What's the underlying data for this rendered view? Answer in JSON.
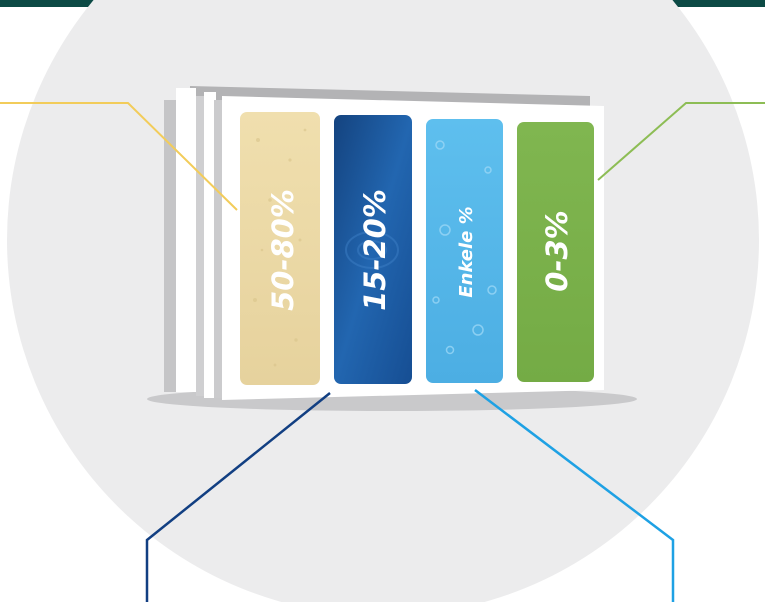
{
  "colors": {
    "top_bar": "#0c4a45",
    "circle": "#ececed",
    "sand": "#ead9a8",
    "water_dark": "#1b5aa3",
    "water_light": "#58b9ea",
    "green": "#7cb24b",
    "line_yellow": "#f2cc5a",
    "line_green": "#8dbd55",
    "line_navy": "#123f82",
    "line_blue": "#1ea1e4"
  },
  "components": [
    {
      "id": "sand",
      "label": "50-80%",
      "color": "#ead9a8"
    },
    {
      "id": "water-dark",
      "label": "15-20%",
      "color": "#1b5aa3"
    },
    {
      "id": "water-light",
      "label": "Enkele %",
      "color": "#58b9ea"
    },
    {
      "id": "green",
      "label": "0-3%",
      "color": "#7cb24b"
    }
  ]
}
